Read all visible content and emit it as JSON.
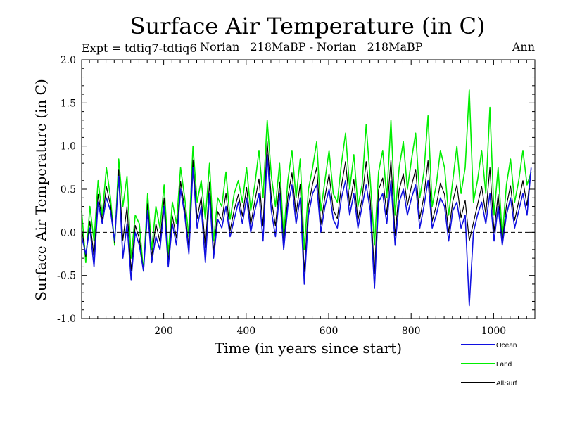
{
  "chart_data": {
    "type": "line",
    "title": "Surface Air Temperature (in C)",
    "subtitle_left": "Expt = tdtiq7-tdtiq6",
    "subtitle_middle": "Norian   218MaBP - Norian   218MaBP",
    "subtitle_right": "Ann",
    "xlabel": "Time (in years since start)",
    "ylabel": "Surface Air Temperature (in C)",
    "xlim": [
      1,
      1100
    ],
    "ylim": [
      -1.0,
      2.0
    ],
    "xticks": [
      200,
      400,
      600,
      800,
      1000
    ],
    "xtick_labels": [
      "200",
      "400",
      "600",
      "800",
      "1000"
    ],
    "yticks": [
      -1.0,
      -0.5,
      0.0,
      0.5,
      1.0,
      1.5,
      2.0
    ],
    "ytick_labels": [
      "-1.0",
      "-0.5",
      "0.0",
      "0.5",
      "1.0",
      "1.5",
      "2.0"
    ],
    "reference_line": {
      "y": 0.0,
      "style": "dashed"
    },
    "legend": {
      "placement": "bottom-right",
      "entries": [
        {
          "name": "Ocean",
          "color": "#1010e0"
        },
        {
          "name": "Land",
          "color": "#00ee00"
        },
        {
          "name": "AllSurf",
          "color": "#000000"
        }
      ]
    },
    "series": [
      {
        "name": "Land",
        "color": "#00ee00",
        "x_start": 1,
        "x_step": 10,
        "values": [
          0.25,
          -0.35,
          0.3,
          -0.1,
          0.6,
          0.2,
          0.75,
          0.4,
          -0.15,
          0.85,
          0.3,
          0.65,
          -0.3,
          0.2,
          0.1,
          -0.45,
          0.45,
          -0.2,
          0.3,
          0.05,
          0.55,
          -0.25,
          0.35,
          0.1,
          0.75,
          0.4,
          -0.05,
          1.0,
          0.35,
          0.6,
          0.15,
          0.8,
          -0.1,
          0.4,
          0.3,
          0.7,
          0.15,
          0.45,
          0.6,
          0.35,
          0.75,
          0.25,
          0.55,
          0.95,
          0.4,
          1.3,
          0.65,
          0.3,
          0.8,
          -0.05,
          0.6,
          0.95,
          0.4,
          0.85,
          -0.2,
          0.5,
          0.75,
          1.05,
          0.25,
          0.6,
          0.95,
          0.45,
          0.35,
          0.8,
          1.15,
          0.5,
          0.9,
          0.3,
          0.55,
          1.25,
          0.6,
          -0.15,
          0.7,
          0.95,
          0.4,
          1.3,
          0.2,
          0.75,
          1.05,
          0.5,
          0.85,
          1.15,
          0.4,
          0.7,
          1.35,
          0.3,
          0.55,
          0.95,
          0.75,
          0.2,
          0.6,
          1.0,
          0.45,
          0.75,
          1.65,
          0.35,
          0.6,
          0.95,
          0.45,
          1.45,
          0.2,
          0.75,
          -0.05,
          0.55,
          0.85,
          0.35,
          0.6,
          0.95,
          0.55,
          0.7
        ]
      },
      {
        "name": "Ocean",
        "color": "#1010e0",
        "x_start": 1,
        "x_step": 10,
        "values": [
          -0.05,
          -0.25,
          0.05,
          -0.4,
          0.35,
          0.1,
          0.4,
          0.25,
          -0.1,
          0.65,
          -0.3,
          0.1,
          -0.55,
          0.0,
          -0.15,
          -0.45,
          0.25,
          -0.35,
          -0.05,
          -0.2,
          0.3,
          -0.4,
          0.1,
          -0.15,
          0.5,
          0.2,
          -0.25,
          0.75,
          0.05,
          0.3,
          -0.35,
          0.45,
          -0.3,
          0.15,
          0.05,
          0.3,
          -0.05,
          0.15,
          0.35,
          0.1,
          0.4,
          0.0,
          0.25,
          0.45,
          -0.1,
          0.9,
          0.25,
          -0.05,
          0.45,
          -0.2,
          0.3,
          0.55,
          0.1,
          0.4,
          -0.6,
          0.2,
          0.45,
          0.55,
          0.0,
          0.3,
          0.5,
          0.15,
          0.05,
          0.4,
          0.6,
          0.2,
          0.45,
          0.05,
          0.3,
          0.55,
          0.25,
          -0.65,
          0.35,
          0.45,
          0.1,
          0.6,
          -0.15,
          0.35,
          0.5,
          0.2,
          0.4,
          0.55,
          0.05,
          0.3,
          0.6,
          0.05,
          0.2,
          0.4,
          0.3,
          -0.1,
          0.25,
          0.35,
          0.05,
          0.2,
          -0.85,
          0.0,
          0.2,
          0.35,
          0.1,
          0.45,
          -0.1,
          0.3,
          -0.15,
          0.2,
          0.4,
          0.05,
          0.25,
          0.45,
          0.2,
          0.75
        ]
      },
      {
        "name": "AllSurf",
        "color": "#000000",
        "x_start": 1,
        "x_step": 10,
        "values": [
          0.05,
          -0.28,
          0.13,
          -0.28,
          0.44,
          0.14,
          0.53,
          0.31,
          -0.12,
          0.73,
          -0.09,
          0.3,
          -0.45,
          0.08,
          -0.07,
          -0.45,
          0.33,
          -0.29,
          0.1,
          -0.11,
          0.4,
          -0.34,
          0.19,
          -0.07,
          0.59,
          0.27,
          -0.18,
          0.84,
          0.16,
          0.41,
          -0.18,
          0.58,
          -0.23,
          0.24,
          0.14,
          0.45,
          0.02,
          0.26,
          0.44,
          0.19,
          0.52,
          0.09,
          0.36,
          0.62,
          0.07,
          1.05,
          0.39,
          0.07,
          0.58,
          -0.15,
          0.41,
          0.69,
          0.21,
          0.56,
          -0.46,
          0.31,
          0.56,
          0.75,
          0.09,
          0.41,
          0.68,
          0.26,
          0.16,
          0.54,
          0.82,
          0.31,
          0.61,
          0.14,
          0.39,
          0.82,
          0.37,
          -0.48,
          0.49,
          0.63,
          0.21,
          0.84,
          -0.04,
          0.49,
          0.68,
          0.31,
          0.54,
          0.73,
          0.16,
          0.42,
          0.83,
          0.13,
          0.31,
          0.57,
          0.44,
          0.0,
          0.36,
          0.55,
          0.17,
          0.37,
          -0.1,
          0.11,
          0.32,
          0.53,
          0.21,
          0.75,
          0.0,
          0.44,
          -0.12,
          0.31,
          0.54,
          0.14,
          0.36,
          0.6,
          0.31,
          0.74
        ]
      }
    ]
  }
}
